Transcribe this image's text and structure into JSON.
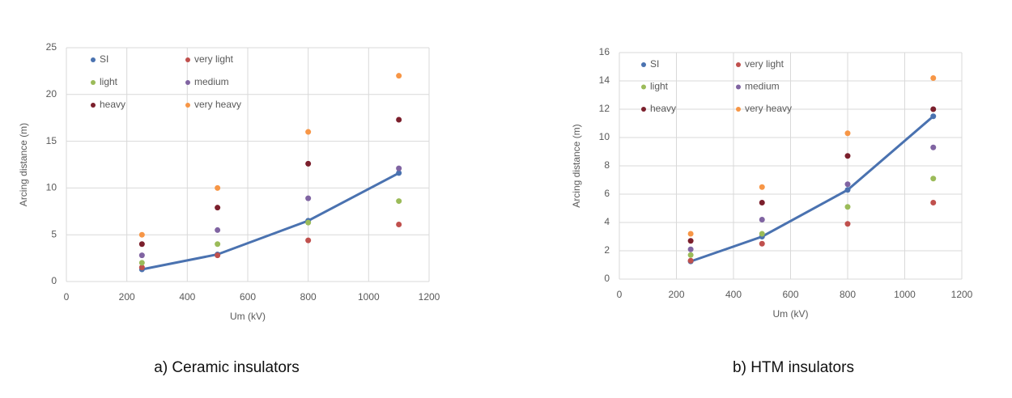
{
  "chart_data": [
    {
      "type": "scatter",
      "caption": "a) Ceramic insulators",
      "x_label": "Um (kV)",
      "y_label": "Arcing distance (m)",
      "x": [
        250,
        500,
        800,
        1100
      ],
      "xlim": [
        0,
        1200
      ],
      "xticks": [
        0,
        200,
        400,
        600,
        800,
        1000,
        1200
      ],
      "ylim": [
        0,
        25
      ],
      "yticks": [
        0,
        5,
        10,
        15,
        20,
        25
      ],
      "grid": true,
      "series": [
        {
          "name": "SI",
          "color": "#4a72b0",
          "line": true,
          "values": [
            1.3,
            2.9,
            6.5,
            11.6
          ]
        },
        {
          "name": "very light",
          "color": "#c0504d",
          "values": [
            1.5,
            2.8,
            4.4,
            6.1
          ]
        },
        {
          "name": "light",
          "color": "#9bbb59",
          "values": [
            2.0,
            4.0,
            6.3,
            8.6
          ]
        },
        {
          "name": "medium",
          "color": "#8064a2",
          "values": [
            2.8,
            5.5,
            8.9,
            12.1
          ]
        },
        {
          "name": "heavy",
          "color": "#7b1f2c",
          "values": [
            4.0,
            7.9,
            12.6,
            17.3
          ]
        },
        {
          "name": "very heavy",
          "color": "#f79646",
          "values": [
            5.0,
            10.0,
            16.0,
            22.0
          ]
        }
      ]
    },
    {
      "type": "scatter",
      "caption": "b) HTM insulators",
      "x_label": "Um (kV)",
      "y_label": "Arcing distance (m)",
      "x": [
        250,
        500,
        800,
        1100
      ],
      "xlim": [
        0,
        1200
      ],
      "xticks": [
        0,
        200,
        400,
        600,
        800,
        1000,
        1200
      ],
      "ylim": [
        0,
        16
      ],
      "yticks": [
        0,
        2,
        4,
        6,
        8,
        10,
        12,
        14,
        16
      ],
      "grid": true,
      "series": [
        {
          "name": "SI",
          "color": "#4a72b0",
          "line": true,
          "values": [
            1.25,
            3.0,
            6.3,
            11.5
          ]
        },
        {
          "name": "very light",
          "color": "#c0504d",
          "values": [
            1.3,
            2.5,
            3.9,
            5.4
          ]
        },
        {
          "name": "light",
          "color": "#9bbb59",
          "values": [
            1.7,
            3.2,
            5.1,
            7.1
          ]
        },
        {
          "name": "medium",
          "color": "#8064a2",
          "values": [
            2.1,
            4.2,
            6.7,
            9.3
          ]
        },
        {
          "name": "heavy",
          "color": "#7b1f2c",
          "values": [
            2.7,
            5.4,
            8.7,
            12.0
          ]
        },
        {
          "name": "very heavy",
          "color": "#f79646",
          "values": [
            3.2,
            6.5,
            10.3,
            14.2
          ]
        }
      ]
    }
  ]
}
